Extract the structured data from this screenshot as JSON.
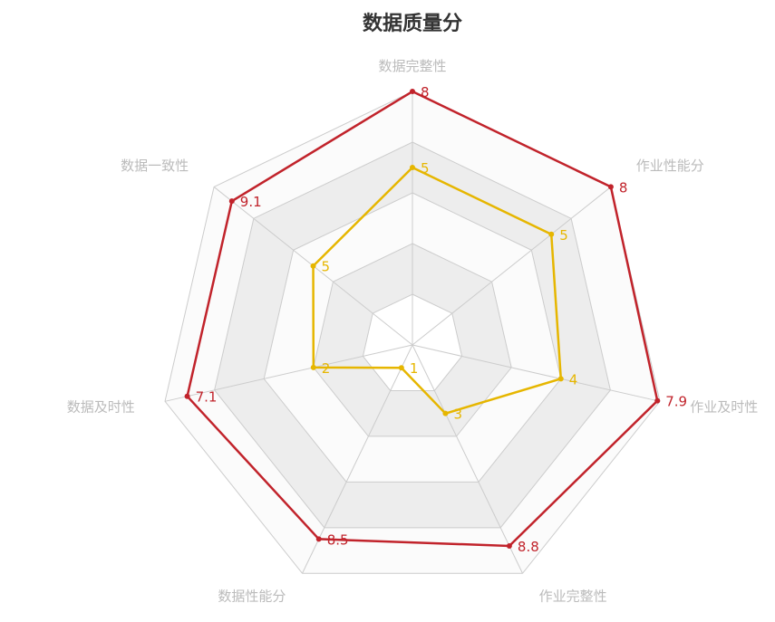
{
  "chart_data": {
    "type": "radar",
    "title": "数据质量分",
    "indicators": [
      {
        "name": "数据完整性",
        "min": -2,
        "max": 8
      },
      {
        "name": "作业性能分",
        "min": -2,
        "max": 8
      },
      {
        "name": "作业及时性",
        "min": -2,
        "max": 8
      },
      {
        "name": "作业完整性",
        "min": 0,
        "max": 10
      },
      {
        "name": "数据性能分",
        "min": 0,
        "max": 10
      },
      {
        "name": "数据及时性",
        "min": -2,
        "max": 8
      },
      {
        "name": "数据一致性",
        "min": 0,
        "max": 10
      }
    ],
    "split_number": 5,
    "series": [
      {
        "values": [
          8,
          8,
          7.9,
          8.8,
          8.5,
          7.1,
          9.1
        ],
        "color": "#c1232b"
      },
      {
        "values": [
          5,
          5,
          4,
          3,
          1,
          2,
          5
        ],
        "color": "#e6b600"
      }
    ],
    "split_area_colors": [
      "#ffffff",
      "#ededed",
      "#fbfbfb",
      "#ededed",
      "#fbfbfb"
    ],
    "axis_line_color": "#cccccc"
  }
}
